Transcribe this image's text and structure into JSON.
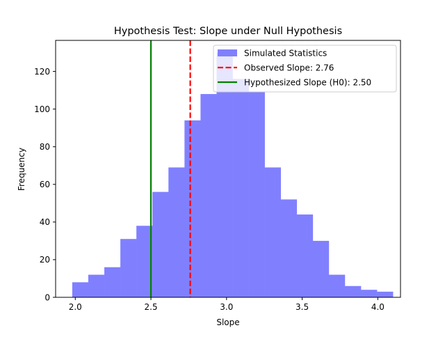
{
  "chart_data": {
    "type": "bar",
    "title": "Hypothesis Test: Slope under Null Hypothesis",
    "xlabel": "Slope",
    "ylabel": "Frequency",
    "xlim": [
      1.87,
      4.15
    ],
    "ylim": [
      0,
      136.5
    ],
    "xticks": [
      "2.0",
      "2.5",
      "3.0",
      "3.5",
      "4.0"
    ],
    "xtick_values": [
      2.0,
      2.5,
      3.0,
      3.5,
      4.0
    ],
    "yticks": [
      "0",
      "20",
      "40",
      "60",
      "80",
      "100",
      "120"
    ],
    "ytick_values": [
      0,
      20,
      40,
      60,
      80,
      100,
      120
    ],
    "grid": false,
    "legend_position": "top-right",
    "histogram": {
      "series_name": "Simulated Statistics",
      "color": "#8080ff",
      "bin_edges": [
        1.98,
        2.086,
        2.192,
        2.298,
        2.404,
        2.51,
        2.616,
        2.722,
        2.828,
        2.934,
        3.04,
        3.146,
        3.252,
        3.358,
        3.464,
        3.57,
        3.676,
        3.782,
        3.888,
        3.994,
        4.1
      ],
      "counts": [
        8,
        12,
        16,
        31,
        38,
        56,
        69,
        94,
        108,
        130,
        116,
        109,
        69,
        52,
        44,
        30,
        12,
        6,
        4,
        3
      ]
    },
    "lines": [
      {
        "name": "Observed Slope: 2.76",
        "x": 2.76,
        "color": "#ff0000",
        "style": "dashed"
      },
      {
        "name": "Hypothesized Slope (H0): 2.50",
        "x": 2.5,
        "color": "#008000",
        "style": "solid"
      }
    ]
  }
}
